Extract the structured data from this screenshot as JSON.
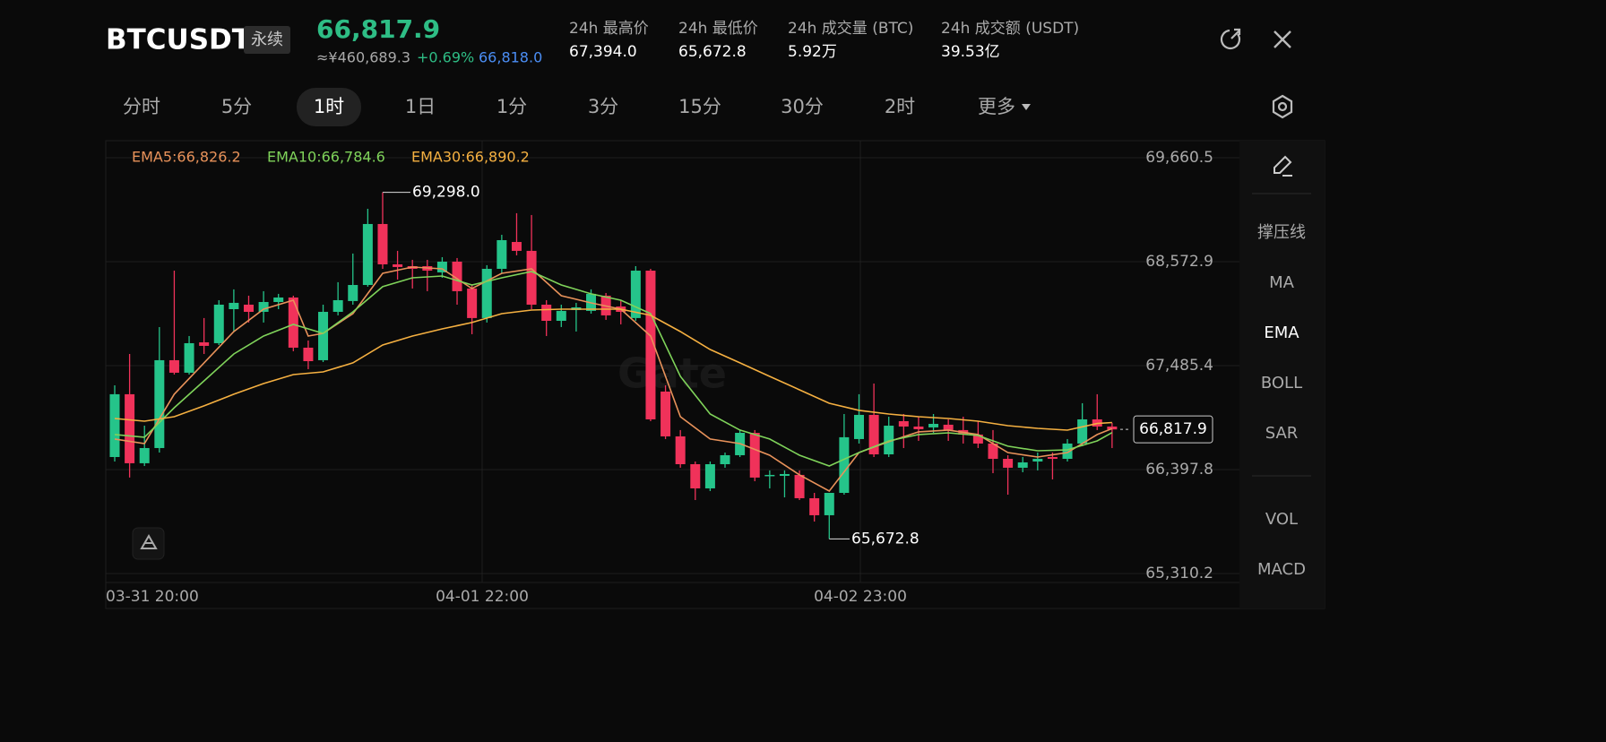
{
  "header": {
    "symbol": "BTCUSDT",
    "contract": "永续",
    "price": "66,817.9",
    "cny": "≈¥460,689.3",
    "change": "+0.69%",
    "mark_price": "66,818.0"
  },
  "stats": [
    {
      "label": "24h 最高价",
      "value": "67,394.0"
    },
    {
      "label": "24h 最低价",
      "value": "65,672.8"
    },
    {
      "label": "24h 成交量 (BTC)",
      "value": "5.92万"
    },
    {
      "label": "24h 成交额 (USDT)",
      "value": "39.53亿"
    }
  ],
  "tabs": [
    "分时",
    "5分",
    "1时",
    "1日",
    "1分",
    "3分",
    "15分",
    "30分",
    "2时",
    "更多"
  ],
  "active_tab": 2,
  "side_tools": [
    "撑压线",
    "MA",
    "EMA",
    "BOLL",
    "SAR",
    "VOL",
    "MACD"
  ],
  "active_tool": 2,
  "chart_data": {
    "type": "candlestick",
    "up_color": "#25c48a",
    "down_color": "#f0325a",
    "ylim": [
      65216.4,
      69838.6
    ],
    "yticks": [
      {
        "value": 69660.5,
        "label": "69,660.5"
      },
      {
        "value": 68572.9,
        "label": "68,572.9"
      },
      {
        "value": 67485.4,
        "label": "67,485.4"
      },
      {
        "value": 66397.8,
        "label": "66,397.8"
      },
      {
        "value": 65310.2,
        "label": "65,310.2"
      }
    ],
    "x_labels": [
      "03-31 20:00",
      "04-01 22:00",
      "04-02 23:00"
    ],
    "watermark": "Gate",
    "candles": [
      [
        66529,
        67279,
        66482,
        67186
      ],
      [
        67186,
        67607,
        66314,
        66464
      ],
      [
        66464,
        66857,
        66435,
        66623
      ],
      [
        66623,
        67889,
        66576,
        67542
      ],
      [
        67542,
        68479,
        67392,
        67411
      ],
      [
        67411,
        67795,
        67392,
        67720
      ],
      [
        67729,
        67983,
        67607,
        67692
      ],
      [
        67720,
        68170,
        67701,
        68123
      ],
      [
        68076,
        68283,
        67842,
        68142
      ],
      [
        68123,
        68217,
        67936,
        68048
      ],
      [
        68048,
        68264,
        67936,
        68151
      ],
      [
        68151,
        68236,
        68076,
        68198
      ],
      [
        68198,
        68217,
        67636,
        67673
      ],
      [
        67673,
        67748,
        67448,
        67532
      ],
      [
        67542,
        68123,
        67523,
        68048
      ],
      [
        68048,
        68358,
        68011,
        68170
      ],
      [
        68161,
        68658,
        68123,
        68329
      ],
      [
        68329,
        69126,
        68311,
        68967
      ],
      [
        68967,
        69298,
        68498,
        68545
      ],
      [
        68545,
        68686,
        68386,
        68517
      ],
      [
        68526,
        68592,
        68292,
        68498
      ],
      [
        68526,
        68592,
        68264,
        68479
      ],
      [
        68461,
        68620,
        68404,
        68573
      ],
      [
        68573,
        68611,
        68123,
        68264
      ],
      [
        68292,
        68329,
        67814,
        67983
      ],
      [
        67983,
        68536,
        67936,
        68498
      ],
      [
        68498,
        68854,
        68451,
        68798
      ],
      [
        68779,
        69080,
        68639,
        68686
      ],
      [
        68686,
        69061,
        68076,
        68123
      ],
      [
        68123,
        68170,
        67795,
        67954
      ],
      [
        67954,
        68123,
        67889,
        68058
      ],
      [
        68067,
        68142,
        67842,
        68095
      ],
      [
        68058,
        68283,
        68029,
        68236
      ],
      [
        68217,
        68245,
        67964,
        68011
      ],
      [
        68104,
        68170,
        67917,
        68048
      ],
      [
        67983,
        68526,
        67954,
        68479
      ],
      [
        68479,
        68498,
        66904,
        66923
      ],
      [
        67214,
        67279,
        66717,
        66745
      ],
      [
        66745,
        66811,
        66417,
        66454
      ],
      [
        66454,
        66482,
        66079,
        66201
      ],
      [
        66201,
        66482,
        66173,
        66454
      ],
      [
        66454,
        66576,
        66417,
        66548
      ],
      [
        66548,
        66811,
        66529,
        66782
      ],
      [
        66782,
        66811,
        66276,
        66314
      ],
      [
        66332,
        66389,
        66201,
        66342
      ],
      [
        66332,
        66389,
        66107,
        66351
      ],
      [
        66342,
        66389,
        66079,
        66098
      ],
      [
        66098,
        66154,
        65854,
        65920
      ],
      [
        65920,
        66154,
        65672.8,
        66154
      ],
      [
        66154,
        66979,
        66135,
        66736
      ],
      [
        66717,
        67186,
        66670,
        66970
      ],
      [
        66970,
        67298,
        66529,
        66557
      ],
      [
        66557,
        66951,
        66529,
        66857
      ],
      [
        66904,
        66979,
        66623,
        66848
      ],
      [
        66848,
        66951,
        66698,
        66820
      ],
      [
        66839,
        66979,
        66782,
        66876
      ],
      [
        66867,
        66923,
        66698,
        66811
      ],
      [
        66811,
        66951,
        66670,
        66764
      ],
      [
        66764,
        66904,
        66623,
        66670
      ],
      [
        66670,
        66811,
        66360,
        66510
      ],
      [
        66510,
        66548,
        66135,
        66417
      ],
      [
        66417,
        66529,
        66370,
        66473
      ],
      [
        66482,
        66576,
        66389,
        66510
      ],
      [
        66529,
        66576,
        66295,
        66510
      ],
      [
        66510,
        66717,
        66482,
        66670
      ],
      [
        66670,
        67092,
        66642,
        66923
      ],
      [
        66923,
        67186,
        66811,
        66848
      ],
      [
        66848,
        66886,
        66623,
        66817.9
      ]
    ],
    "series": [
      {
        "name": "EMA5",
        "legend": "EMA5:66,826.2",
        "color": "#e8925a",
        "x": [
          0,
          2,
          4,
          6,
          8,
          10,
          12,
          13,
          14,
          16,
          18,
          20,
          22,
          24,
          26,
          28,
          30,
          32,
          34,
          36,
          38,
          40,
          42,
          44,
          46,
          48,
          50,
          52,
          54,
          56,
          58,
          60,
          62,
          64,
          66,
          67
        ],
        "values": [
          66717,
          66670,
          67186,
          67514,
          67842,
          68076,
          68170,
          67795,
          67823,
          68029,
          68451,
          68517,
          68498,
          68292,
          68451,
          68498,
          68217,
          68142,
          68076,
          67795,
          66951,
          66717,
          66670,
          66548,
          66342,
          66173,
          66576,
          66689,
          66792,
          66811,
          66764,
          66576,
          66529,
          66576,
          66764,
          66826.2
        ]
      },
      {
        "name": "EMA10",
        "legend": "EMA10:66,784.6",
        "color": "#7fd35a",
        "x": [
          0,
          2,
          4,
          6,
          8,
          10,
          12,
          14,
          16,
          18,
          20,
          22,
          24,
          26,
          28,
          30,
          32,
          34,
          36,
          38,
          40,
          42,
          44,
          46,
          48,
          50,
          52,
          54,
          56,
          58,
          60,
          62,
          64,
          66,
          67
        ],
        "values": [
          66764,
          66736,
          67045,
          67326,
          67607,
          67795,
          67917,
          67823,
          68048,
          68311,
          68404,
          68423,
          68329,
          68404,
          68470,
          68329,
          68236,
          68170,
          68029,
          67373,
          66979,
          66811,
          66717,
          66548,
          66435,
          66576,
          66698,
          66764,
          66782,
          66754,
          66642,
          66595,
          66604,
          66698,
          66784.6
        ]
      },
      {
        "name": "EMA30",
        "legend": "EMA30:66,890.2",
        "color": "#f5b041",
        "x": [
          0,
          2,
          4,
          6,
          8,
          10,
          12,
          14,
          16,
          18,
          20,
          22,
          24,
          26,
          28,
          30,
          32,
          34,
          36,
          38,
          40,
          42,
          44,
          46,
          48,
          50,
          52,
          54,
          56,
          58,
          60,
          62,
          64,
          66,
          67
        ],
        "values": [
          66932,
          66904,
          66951,
          67064,
          67186,
          67298,
          67392,
          67420,
          67514,
          67701,
          67795,
          67870,
          67936,
          68029,
          68067,
          68076,
          68076,
          68076,
          68011,
          67842,
          67654,
          67514,
          67373,
          67232,
          67092,
          67017,
          66979,
          66951,
          66932,
          66904,
          66857,
          66829,
          66810,
          66880,
          66890.2
        ]
      }
    ],
    "high_mark": {
      "index": 18,
      "value": 69298,
      "label": "69,298.0"
    },
    "low_mark": {
      "index": 48,
      "value": 65672.8,
      "label": "65,672.8"
    },
    "last_price": {
      "value": 66817.9,
      "label": "66,817.9"
    }
  }
}
